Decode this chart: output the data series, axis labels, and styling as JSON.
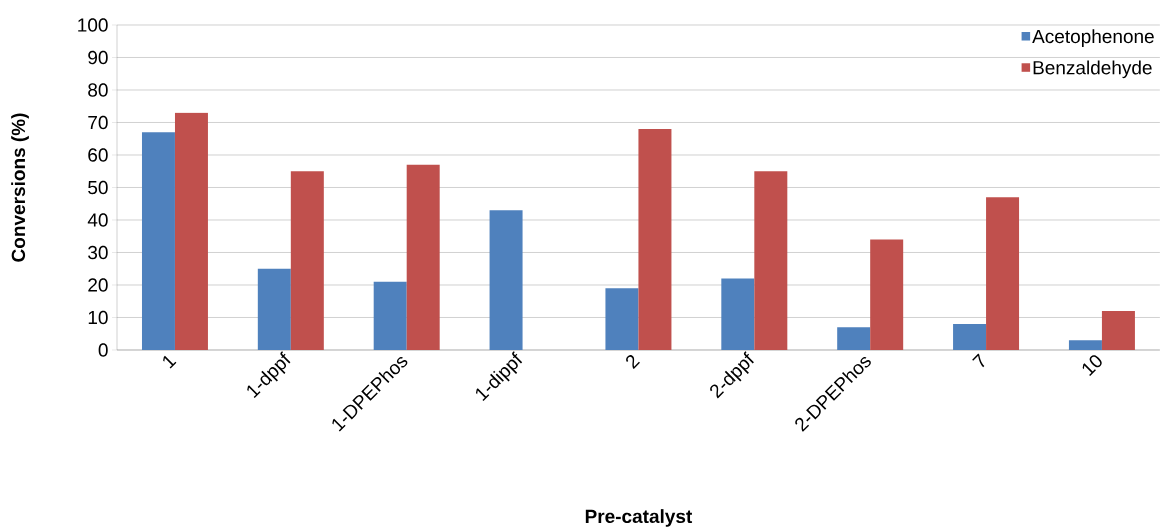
{
  "chart_data": {
    "type": "bar",
    "xlabel": "Pre-catalyst",
    "ylabel": "Conversions (%)",
    "categories": [
      "1",
      "1-dppf",
      "1-DPEPhos",
      "1-dippf",
      "2",
      "2-dppf",
      "2-DPEPhos",
      "7",
      "10"
    ],
    "series": [
      {
        "name": "Acetophenone",
        "color": "#4f81bd",
        "values": [
          67,
          25,
          21,
          43,
          19,
          22,
          7,
          8,
          3
        ]
      },
      {
        "name": "Benzaldehyde",
        "color": "#c0504d",
        "values": [
          73,
          55,
          57,
          null,
          68,
          55,
          34,
          47,
          12
        ]
      }
    ],
    "ylim": [
      0,
      100
    ],
    "yticks": [
      0,
      10,
      20,
      30,
      40,
      50,
      60,
      70,
      80,
      90,
      100
    ],
    "grid": "y",
    "legend": "top right"
  }
}
